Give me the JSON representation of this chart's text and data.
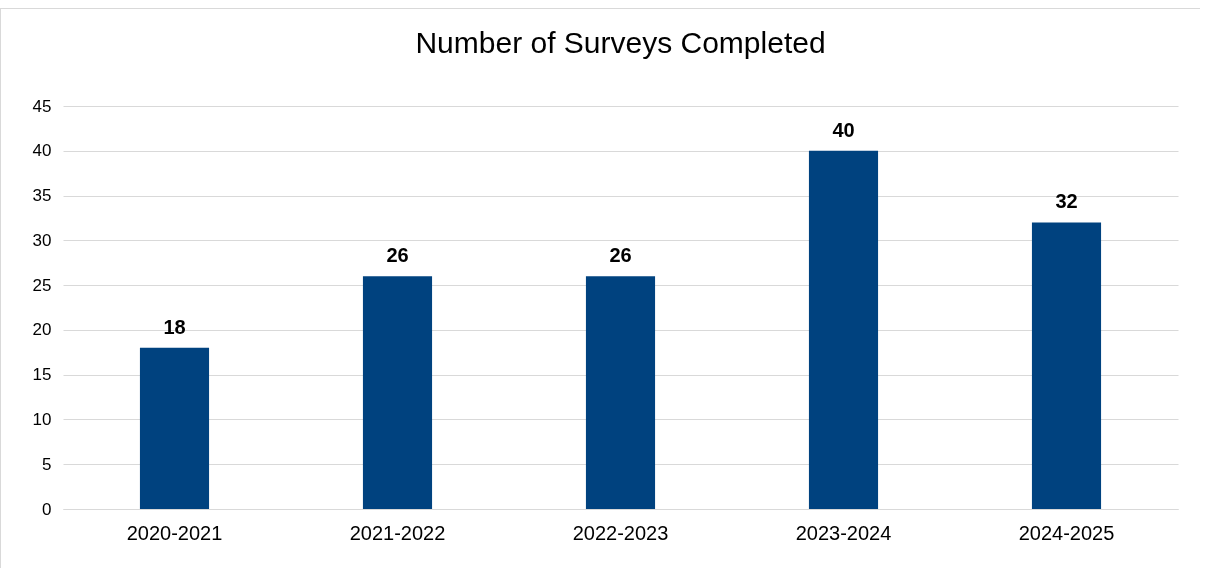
{
  "chart_data": {
    "type": "bar",
    "title": "Number of Surveys Completed",
    "categories": [
      "2020-2021",
      "2021-2022",
      "2022-2023",
      "2023-2024",
      "2024-2025"
    ],
    "values": [
      18,
      26,
      26,
      40,
      32
    ],
    "color": "#00427f",
    "ylim": [
      0,
      45
    ],
    "yticks": [
      0,
      5,
      10,
      15,
      20,
      25,
      30,
      35,
      40,
      45
    ],
    "grid": "y",
    "data_labels": true
  }
}
